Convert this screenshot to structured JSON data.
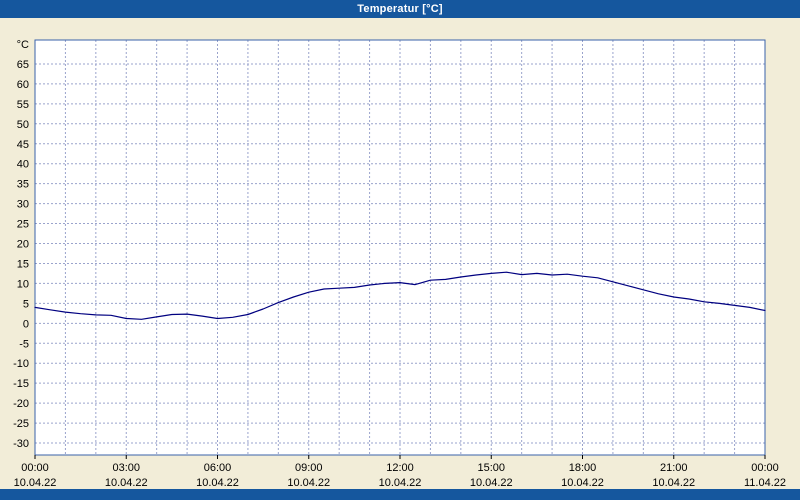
{
  "title_bar": {
    "title": "Temperatur [°C]",
    "background_color": "#15579e",
    "text_color": "#ffffff"
  },
  "chart_data": {
    "type": "line",
    "title": "Temperatur [°C]",
    "unit_label": "°C",
    "line_color": "#000080",
    "grid_color": "#9aa3cc",
    "border_color": "#3a62aa",
    "plot_background": "#ffffff",
    "page_background": "#f2edd8",
    "grid": true,
    "ylim": [
      -33,
      71
    ],
    "y_ticks": [
      65,
      60,
      55,
      50,
      45,
      40,
      35,
      30,
      25,
      20,
      15,
      10,
      5,
      0,
      -5,
      -10,
      -15,
      -20,
      -25,
      -30
    ],
    "x_range_hours": [
      0,
      24
    ],
    "x_tick_hours": [
      0,
      3,
      6,
      9,
      12,
      15,
      18,
      21,
      24
    ],
    "x_tick_labels": [
      "00:00",
      "03:00",
      "06:00",
      "09:00",
      "12:00",
      "15:00",
      "18:00",
      "21:00",
      "00:00"
    ],
    "x_tick_dates": [
      "10.04.22",
      "10.04.22",
      "10.04.22",
      "10.04.22",
      "10.04.22",
      "10.04.22",
      "10.04.22",
      "10.04.22",
      "11.04.22"
    ],
    "series": [
      {
        "name": "Temperatur",
        "x_hours": [
          0,
          0.5,
          1,
          1.5,
          2,
          2.5,
          3,
          3.5,
          4,
          4.5,
          5,
          5.5,
          6,
          6.5,
          7,
          7.5,
          8,
          8.5,
          9,
          9.5,
          10,
          10.5,
          11,
          11.5,
          12,
          12.5,
          13,
          13.5,
          14,
          14.5,
          15,
          15.5,
          16,
          16.5,
          17,
          17.5,
          18,
          18.5,
          19,
          19.5,
          20,
          20.5,
          21,
          21.5,
          22,
          22.5,
          23,
          23.5,
          24
        ],
        "values": [
          4.0,
          3.4,
          2.8,
          2.4,
          2.1,
          2.0,
          1.2,
          1.0,
          1.6,
          2.2,
          2.3,
          1.8,
          1.2,
          1.5,
          2.2,
          3.6,
          5.2,
          6.6,
          7.8,
          8.6,
          8.8,
          9.0,
          9.6,
          10.0,
          10.2,
          9.7,
          10.8,
          11.0,
          11.6,
          12.1,
          12.5,
          12.8,
          12.2,
          12.5,
          12.1,
          12.3,
          11.8,
          11.4,
          10.4,
          9.4,
          8.4,
          7.4,
          6.6,
          6.1,
          5.4,
          5.0,
          4.5,
          4.0,
          3.2
        ]
      }
    ]
  }
}
